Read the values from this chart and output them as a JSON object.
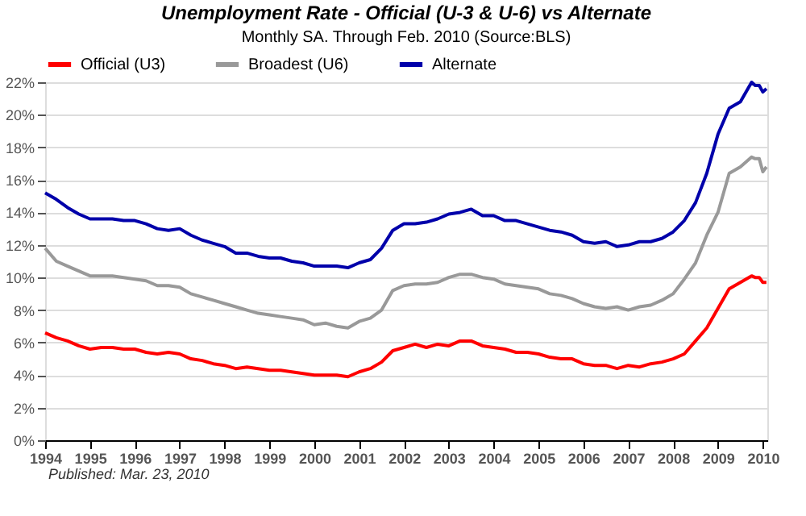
{
  "chart_data": {
    "type": "line",
    "title": "Unemployment Rate - Official (U-3 & U-6) vs Alternate",
    "subtitle": "Monthly SA. Through Feb. 2010  (Source:BLS)",
    "annotations": [
      "Published: Mar. 23, 2010"
    ],
    "x": [
      1994.0,
      1994.25,
      1994.5,
      1994.75,
      1995.0,
      1995.25,
      1995.5,
      1995.75,
      1996.0,
      1996.25,
      1996.5,
      1996.75,
      1997.0,
      1997.25,
      1997.5,
      1997.75,
      1998.0,
      1998.25,
      1998.5,
      1998.75,
      1999.0,
      1999.25,
      1999.5,
      1999.75,
      2000.0,
      2000.25,
      2000.5,
      2000.75,
      2001.0,
      2001.25,
      2001.5,
      2001.75,
      2002.0,
      2002.25,
      2002.5,
      2002.75,
      2003.0,
      2003.25,
      2003.5,
      2003.75,
      2004.0,
      2004.25,
      2004.5,
      2004.75,
      2005.0,
      2005.25,
      2005.5,
      2005.75,
      2006.0,
      2006.25,
      2006.5,
      2006.75,
      2007.0,
      2007.25,
      2007.5,
      2007.75,
      2008.0,
      2008.25,
      2008.5,
      2008.75,
      2009.0,
      2009.25,
      2009.5,
      2009.75,
      2009.83,
      2009.92,
      2010.0,
      2010.08
    ],
    "series": [
      {
        "name": "Official (U3)",
        "color": "#ff0000",
        "values": [
          6.6,
          6.3,
          6.1,
          5.8,
          5.6,
          5.7,
          5.7,
          5.6,
          5.6,
          5.4,
          5.3,
          5.4,
          5.3,
          5.0,
          4.9,
          4.7,
          4.6,
          4.4,
          4.5,
          4.4,
          4.3,
          4.3,
          4.2,
          4.1,
          4.0,
          4.0,
          4.0,
          3.9,
          4.2,
          4.4,
          4.8,
          5.5,
          5.7,
          5.9,
          5.7,
          5.9,
          5.8,
          6.1,
          6.1,
          5.8,
          5.7,
          5.6,
          5.4,
          5.4,
          5.3,
          5.1,
          5.0,
          5.0,
          4.7,
          4.6,
          4.6,
          4.4,
          4.6,
          4.5,
          4.7,
          4.8,
          5.0,
          5.3,
          6.1,
          6.9,
          8.1,
          9.3,
          9.7,
          10.1,
          10.0,
          10.0,
          9.7,
          9.7
        ]
      },
      {
        "name": "Broadest (U6)",
        "color": "#999999",
        "values": [
          11.8,
          11.0,
          10.7,
          10.4,
          10.1,
          10.1,
          10.1,
          10.0,
          9.9,
          9.8,
          9.5,
          9.5,
          9.4,
          9.0,
          8.8,
          8.6,
          8.4,
          8.2,
          8.0,
          7.8,
          7.7,
          7.6,
          7.5,
          7.4,
          7.1,
          7.2,
          7.0,
          6.9,
          7.3,
          7.5,
          8.0,
          9.2,
          9.5,
          9.6,
          9.6,
          9.7,
          10.0,
          10.2,
          10.2,
          10.0,
          9.9,
          9.6,
          9.5,
          9.4,
          9.3,
          9.0,
          8.9,
          8.7,
          8.4,
          8.2,
          8.1,
          8.2,
          8.0,
          8.2,
          8.3,
          8.6,
          9.0,
          9.9,
          10.9,
          12.6,
          14.0,
          16.4,
          16.8,
          17.4,
          17.3,
          17.3,
          16.5,
          16.8
        ]
      },
      {
        "name": "Alternate",
        "color": "#0000aa",
        "values": [
          15.2,
          14.8,
          14.3,
          13.9,
          13.6,
          13.6,
          13.6,
          13.5,
          13.5,
          13.3,
          13.0,
          12.9,
          13.0,
          12.6,
          12.3,
          12.1,
          11.9,
          11.5,
          11.5,
          11.3,
          11.2,
          11.2,
          11.0,
          10.9,
          10.7,
          10.7,
          10.7,
          10.6,
          10.9,
          11.1,
          11.8,
          12.9,
          13.3,
          13.3,
          13.4,
          13.6,
          13.9,
          14.0,
          14.2,
          13.8,
          13.8,
          13.5,
          13.5,
          13.3,
          13.1,
          12.9,
          12.8,
          12.6,
          12.2,
          12.1,
          12.2,
          11.9,
          12.0,
          12.2,
          12.2,
          12.4,
          12.8,
          13.5,
          14.6,
          16.4,
          18.8,
          20.4,
          20.8,
          22.0,
          21.8,
          21.8,
          21.4,
          21.6
        ]
      }
    ],
    "xlim": [
      1994,
      2010.1
    ],
    "xticks": [
      1994,
      1995,
      1996,
      1997,
      1998,
      1999,
      2000,
      2001,
      2002,
      2003,
      2004,
      2005,
      2006,
      2007,
      2008,
      2009,
      2010
    ],
    "ylim": [
      0,
      22
    ],
    "yticks": [
      {
        "value": 0,
        "label": "0%"
      },
      {
        "value": 2,
        "label": "2%"
      },
      {
        "value": 4,
        "label": "4%"
      },
      {
        "value": 6,
        "label": "6%"
      },
      {
        "value": 8,
        "label": "8%"
      },
      {
        "value": 10,
        "label": "10%"
      },
      {
        "value": 12,
        "label": "12%"
      },
      {
        "value": 14,
        "label": "14%"
      },
      {
        "value": 16,
        "label": "16%"
      },
      {
        "value": 18,
        "label": "18%"
      },
      {
        "value": 20,
        "label": "20%"
      },
      {
        "value": 22,
        "label": "22%"
      }
    ],
    "grid": "y",
    "legend": "top",
    "line_style": "solid"
  }
}
